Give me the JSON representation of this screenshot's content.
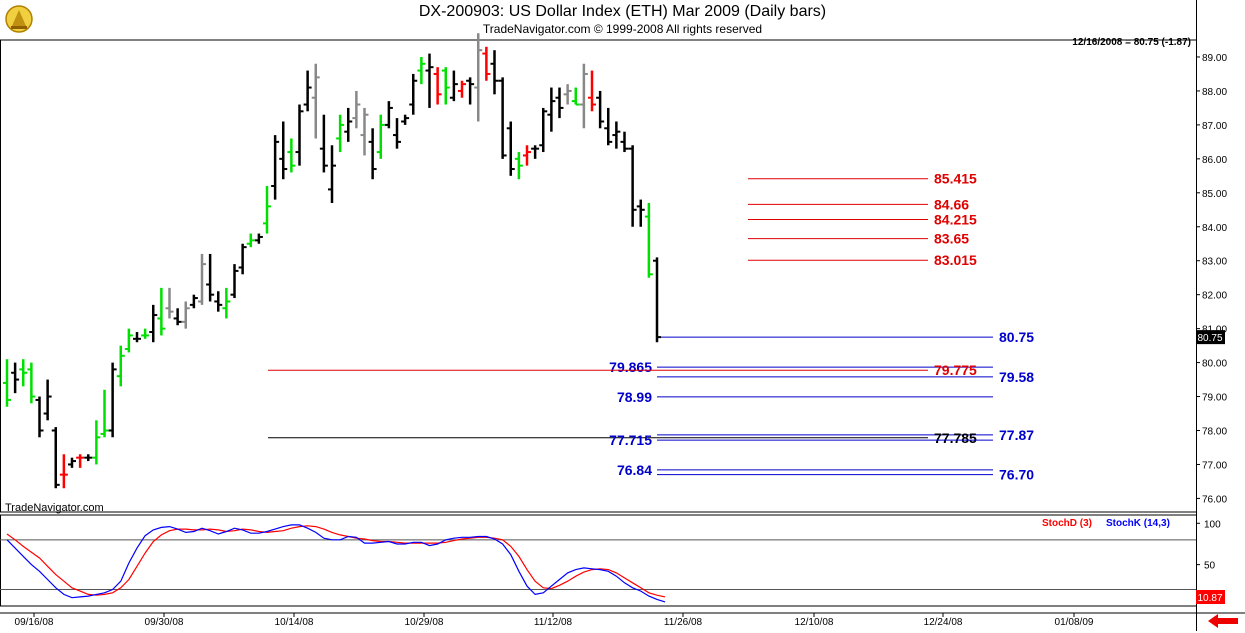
{
  "header": {
    "title": "DX-200903:  US Dollar Index (ETH) Mar 2009  (Daily bars)",
    "copyright": "TradeNavigator.com © 1999-2008 All rights reserved",
    "quote": "12/16/2008 = 80.75 (-1.87)",
    "watermark": "TradeNavigator.com"
  },
  "colors": {
    "up_bar": "#00e000",
    "down_bar": "#ff0000",
    "neutral_bar": "#888888",
    "level_red": "#e00000",
    "level_blue": "#0000cc",
    "stoch_d": "#ff0000",
    "stoch_k": "#0000ff",
    "price_tag": "#000000",
    "stoch_tag": "#ff0000"
  },
  "chart_data": [
    {
      "type": "ohlc",
      "title": "DX-200903:  US Dollar Index (ETH) Mar 2009  (Daily bars)",
      "ylim": [
        75.6,
        89.5
      ],
      "y_ticks": [
        "76.00",
        "77.00",
        "78.00",
        "79.00",
        "80.00",
        "81.00",
        "82.00",
        "83.00",
        "84.00",
        "85.00",
        "86.00",
        "87.00",
        "88.00",
        "89.00"
      ],
      "x_tick_labels": [
        "09/16/08",
        "09/30/08",
        "10/14/08",
        "10/29/08",
        "11/12/08",
        "11/26/08",
        "12/10/08",
        "12/24/08",
        "01/08/09"
      ],
      "last_price_tag": "80.75",
      "bars": [
        {
          "h": 80.1,
          "l": 78.7,
          "o": 79.4,
          "c": 78.9,
          "col": "g"
        },
        {
          "h": 80.0,
          "l": 79.1,
          "o": 79.7,
          "c": 79.5,
          "col": "k"
        },
        {
          "h": 80.1,
          "l": 79.3,
          "o": 79.8,
          "c": 79.7,
          "col": "g"
        },
        {
          "h": 80.0,
          "l": 78.8,
          "o": 79.8,
          "c": 79.0,
          "col": "g"
        },
        {
          "h": 79.0,
          "l": 77.8,
          "o": 78.9,
          "c": 78.0,
          "col": "k"
        },
        {
          "h": 79.5,
          "l": 78.3,
          "o": 78.5,
          "c": 79.0,
          "col": "k"
        },
        {
          "h": 78.1,
          "l": 76.3,
          "o": 78.0,
          "c": 76.4,
          "col": "k"
        },
        {
          "h": 77.3,
          "l": 76.3,
          "o": 76.7,
          "c": 76.7,
          "col": "r"
        },
        {
          "h": 77.2,
          "l": 76.9,
          "o": 77.0,
          "c": 77.1,
          "col": "k"
        },
        {
          "h": 77.3,
          "l": 76.9,
          "o": 77.2,
          "c": 77.2,
          "col": "r"
        },
        {
          "h": 77.3,
          "l": 77.1,
          "o": 77.2,
          "c": 77.2,
          "col": "k"
        },
        {
          "h": 78.3,
          "l": 77.0,
          "o": 77.2,
          "c": 77.8,
          "col": "g"
        },
        {
          "h": 79.2,
          "l": 77.8,
          "o": 77.9,
          "c": 78.0,
          "col": "g"
        },
        {
          "h": 80.0,
          "l": 77.8,
          "o": 78.0,
          "c": 79.8,
          "col": "k"
        },
        {
          "h": 80.5,
          "l": 79.3,
          "o": 79.6,
          "c": 80.2,
          "col": "g"
        },
        {
          "h": 81.0,
          "l": 80.3,
          "o": 80.4,
          "c": 80.8,
          "col": "g"
        },
        {
          "h": 80.9,
          "l": 80.6,
          "o": 80.7,
          "c": 80.7,
          "col": "k"
        },
        {
          "h": 81.0,
          "l": 80.7,
          "o": 80.8,
          "c": 80.8,
          "col": "g"
        },
        {
          "h": 81.7,
          "l": 80.6,
          "o": 80.9,
          "c": 81.4,
          "col": "k"
        },
        {
          "h": 82.2,
          "l": 80.8,
          "o": 81.3,
          "c": 81.0,
          "col": "g"
        },
        {
          "h": 82.2,
          "l": 81.3,
          "o": 81.6,
          "c": 81.5,
          "col": "n"
        },
        {
          "h": 81.6,
          "l": 81.1,
          "o": 81.3,
          "c": 81.2,
          "col": "k"
        },
        {
          "h": 81.8,
          "l": 81.0,
          "o": 81.2,
          "c": 81.6,
          "col": "n"
        },
        {
          "h": 82.0,
          "l": 81.6,
          "o": 81.7,
          "c": 81.9,
          "col": "k"
        },
        {
          "h": 83.2,
          "l": 81.7,
          "o": 81.8,
          "c": 82.9,
          "col": "n"
        },
        {
          "h": 83.2,
          "l": 81.8,
          "o": 82.3,
          "c": 82.0,
          "col": "k"
        },
        {
          "h": 82.1,
          "l": 81.5,
          "o": 81.8,
          "c": 81.7,
          "col": "k"
        },
        {
          "h": 82.2,
          "l": 81.3,
          "o": 81.6,
          "c": 81.8,
          "col": "g"
        },
        {
          "h": 82.9,
          "l": 81.9,
          "o": 82.0,
          "c": 82.7,
          "col": "k"
        },
        {
          "h": 83.5,
          "l": 82.6,
          "o": 82.8,
          "c": 83.4,
          "col": "k"
        },
        {
          "h": 83.8,
          "l": 83.4,
          "o": 83.5,
          "c": 83.6,
          "col": "g"
        },
        {
          "h": 83.8,
          "l": 83.5,
          "o": 83.6,
          "c": 83.7,
          "col": "k"
        },
        {
          "h": 85.2,
          "l": 83.8,
          "o": 84.1,
          "c": 84.6,
          "col": "g"
        },
        {
          "h": 86.7,
          "l": 84.8,
          "o": 85.2,
          "c": 86.5,
          "col": "k"
        },
        {
          "h": 87.1,
          "l": 85.4,
          "o": 86.0,
          "c": 85.7,
          "col": "k"
        },
        {
          "h": 86.6,
          "l": 85.6,
          "o": 86.2,
          "c": 85.8,
          "col": "g"
        },
        {
          "h": 87.6,
          "l": 85.8,
          "o": 86.2,
          "c": 87.4,
          "col": "k"
        },
        {
          "h": 88.6,
          "l": 87.4,
          "o": 87.6,
          "c": 88.1,
          "col": "k"
        },
        {
          "h": 88.8,
          "l": 86.6,
          "o": 87.8,
          "c": 88.4,
          "col": "n"
        },
        {
          "h": 87.3,
          "l": 85.6,
          "o": 86.3,
          "c": 85.8,
          "col": "k"
        },
        {
          "h": 86.4,
          "l": 84.7,
          "o": 85.1,
          "c": 85.8,
          "col": "k"
        },
        {
          "h": 87.3,
          "l": 86.2,
          "o": 86.6,
          "c": 87.0,
          "col": "g"
        },
        {
          "h": 87.5,
          "l": 86.5,
          "o": 86.8,
          "c": 87.1,
          "col": "k"
        },
        {
          "h": 88.0,
          "l": 86.9,
          "o": 87.2,
          "c": 87.6,
          "col": "n"
        },
        {
          "h": 87.5,
          "l": 86.1,
          "o": 86.7,
          "c": 87.3,
          "col": "n"
        },
        {
          "h": 86.9,
          "l": 85.4,
          "o": 86.5,
          "c": 85.7,
          "col": "k"
        },
        {
          "h": 87.3,
          "l": 86.0,
          "o": 86.2,
          "c": 87.0,
          "col": "g"
        },
        {
          "h": 87.7,
          "l": 86.9,
          "o": 87.0,
          "c": 87.5,
          "col": "k"
        },
        {
          "h": 87.2,
          "l": 86.3,
          "o": 86.7,
          "c": 86.5,
          "col": "k"
        },
        {
          "h": 87.3,
          "l": 87.0,
          "o": 87.1,
          "c": 87.2,
          "col": "k"
        },
        {
          "h": 88.5,
          "l": 87.3,
          "o": 87.6,
          "c": 88.3,
          "col": "k"
        },
        {
          "h": 89.0,
          "l": 88.2,
          "o": 88.6,
          "c": 88.8,
          "col": "g"
        },
        {
          "h": 89.1,
          "l": 87.5,
          "o": 88.6,
          "c": 88.7,
          "col": "k"
        },
        {
          "h": 88.7,
          "l": 87.6,
          "o": 88.5,
          "c": 87.9,
          "col": "r"
        },
        {
          "h": 88.7,
          "l": 87.6,
          "o": 88.6,
          "c": 88.1,
          "col": "g"
        },
        {
          "h": 88.6,
          "l": 87.7,
          "o": 87.8,
          "c": 88.2,
          "col": "k"
        },
        {
          "h": 88.3,
          "l": 87.8,
          "o": 88.0,
          "c": 88.2,
          "col": "r"
        },
        {
          "h": 88.4,
          "l": 87.6,
          "o": 88.3,
          "c": 88.2,
          "col": "k"
        },
        {
          "h": 89.7,
          "l": 87.1,
          "o": 88.1,
          "c": 89.2,
          "col": "n"
        },
        {
          "h": 89.3,
          "l": 88.3,
          "o": 89.1,
          "c": 88.5,
          "col": "r"
        },
        {
          "h": 89.2,
          "l": 87.9,
          "o": 88.8,
          "c": 88.3,
          "col": "k"
        },
        {
          "h": 88.4,
          "l": 86.0,
          "o": 88.3,
          "c": 86.1,
          "col": "k"
        },
        {
          "h": 87.1,
          "l": 85.5,
          "o": 86.9,
          "c": 85.7,
          "col": "k"
        },
        {
          "h": 86.2,
          "l": 85.4,
          "o": 86.0,
          "c": 85.8,
          "col": "g"
        },
        {
          "h": 86.4,
          "l": 85.8,
          "o": 86.1,
          "c": 86.2,
          "col": "r"
        },
        {
          "h": 86.4,
          "l": 86.0,
          "o": 86.3,
          "c": 86.3,
          "col": "k"
        },
        {
          "h": 87.5,
          "l": 86.2,
          "o": 86.4,
          "c": 87.4,
          "col": "k"
        },
        {
          "h": 88.1,
          "l": 86.8,
          "o": 87.3,
          "c": 87.7,
          "col": "k"
        },
        {
          "h": 88.1,
          "l": 87.2,
          "o": 87.8,
          "c": 87.5,
          "col": "k"
        },
        {
          "h": 88.2,
          "l": 87.6,
          "o": 87.9,
          "c": 88.0,
          "col": "n"
        },
        {
          "h": 88.1,
          "l": 87.6,
          "o": 87.7,
          "c": 87.6,
          "col": "g"
        },
        {
          "h": 88.8,
          "l": 86.9,
          "o": 87.6,
          "c": 88.5,
          "col": "n"
        },
        {
          "h": 88.6,
          "l": 87.4,
          "o": 87.8,
          "c": 87.6,
          "col": "r"
        },
        {
          "h": 88.0,
          "l": 86.9,
          "o": 87.8,
          "c": 87.1,
          "col": "k"
        },
        {
          "h": 87.5,
          "l": 86.4,
          "o": 86.9,
          "c": 86.5,
          "col": "k"
        },
        {
          "h": 87.1,
          "l": 86.3,
          "o": 86.7,
          "c": 86.8,
          "col": "k"
        },
        {
          "h": 86.8,
          "l": 86.2,
          "o": 86.5,
          "c": 86.3,
          "col": "k"
        },
        {
          "h": 86.4,
          "l": 84.0,
          "o": 86.3,
          "c": 84.5,
          "col": "k"
        },
        {
          "h": 84.8,
          "l": 84.0,
          "o": 84.6,
          "c": 84.5,
          "col": "k"
        },
        {
          "h": 84.7,
          "l": 82.5,
          "o": 84.3,
          "c": 82.6,
          "col": "g"
        },
        {
          "h": 83.1,
          "l": 80.6,
          "o": 83.0,
          "c": 80.75,
          "col": "k"
        }
      ]
    },
    {
      "type": "line",
      "title": "Stochastic",
      "ylim": [
        0,
        110
      ],
      "y_ticks": [
        "100",
        "50"
      ],
      "last_value_tag": "10.87",
      "series": [
        {
          "name": "StochD (3)",
          "color": "#ff0000",
          "values": [
            87,
            80,
            72,
            65,
            58,
            48,
            38,
            30,
            22,
            18,
            14,
            13,
            14,
            16,
            22,
            32,
            48,
            64,
            78,
            86,
            91,
            93,
            93,
            92,
            92,
            93,
            92,
            90,
            91,
            93,
            92,
            90,
            89,
            90,
            91,
            94,
            96,
            97,
            96,
            93,
            89,
            86,
            84,
            82,
            81,
            79,
            78,
            78,
            77,
            76,
            76,
            76,
            76,
            76,
            77,
            79,
            81,
            82,
            83,
            83,
            82,
            80,
            72,
            60,
            44,
            30,
            22,
            21,
            25,
            30,
            36,
            41,
            44,
            45,
            44,
            40,
            34,
            28,
            22,
            16,
            13,
            11
          ]
        },
        {
          "name": "StochK (14,3)",
          "color": "#0000ff",
          "values": [
            80,
            70,
            60,
            50,
            42,
            32,
            22,
            14,
            10,
            11,
            12,
            14,
            16,
            20,
            30,
            52,
            70,
            85,
            92,
            95,
            96,
            93,
            89,
            90,
            94,
            91,
            87,
            90,
            94,
            92,
            88,
            88,
            90,
            93,
            96,
            98,
            98,
            94,
            89,
            82,
            80,
            80,
            84,
            83,
            76,
            76,
            77,
            78,
            75,
            75,
            77,
            77,
            73,
            75,
            80,
            82,
            83,
            83,
            84,
            84,
            81,
            75,
            62,
            42,
            24,
            14,
            16,
            24,
            32,
            40,
            44,
            46,
            45,
            44,
            42,
            36,
            28,
            22,
            18,
            12,
            8,
            5
          ]
        }
      ]
    }
  ],
  "levels": [
    {
      "value": 85.415,
      "label": "85.415",
      "color": "red",
      "x1": 748,
      "x2": 928,
      "label_side": "right"
    },
    {
      "value": 84.66,
      "label": "84.66",
      "color": "red",
      "x1": 748,
      "x2": 928,
      "label_side": "right"
    },
    {
      "value": 84.215,
      "label": "84.215",
      "color": "red",
      "x1": 748,
      "x2": 928,
      "label_side": "right"
    },
    {
      "value": 83.65,
      "label": "83.65",
      "color": "red",
      "x1": 748,
      "x2": 928,
      "label_side": "right"
    },
    {
      "value": 83.015,
      "label": "83.015",
      "color": "red",
      "x1": 748,
      "x2": 928,
      "label_side": "right"
    },
    {
      "value": 80.75,
      "label": "80.75",
      "color": "blue",
      "x1": 657,
      "x2": 993,
      "label_side": "right"
    },
    {
      "value": 79.865,
      "label": "79.865",
      "color": "blue",
      "x1": 657,
      "x2": 993,
      "label_side": "left"
    },
    {
      "value": 79.775,
      "label": "79.775",
      "color": "red",
      "x1": 268,
      "x2": 928,
      "label_side": "right"
    },
    {
      "value": 79.58,
      "label": "79.58",
      "color": "blue",
      "x1": 657,
      "x2": 993,
      "label_side": "right"
    },
    {
      "value": 78.99,
      "label": "78.99",
      "color": "blue",
      "x1": 657,
      "x2": 993,
      "label_side": "left"
    },
    {
      "value": 77.87,
      "label": "77.87",
      "color": "blue",
      "x1": 657,
      "x2": 993,
      "label_side": "right"
    },
    {
      "value": 77.785,
      "label": "77.785",
      "color": "black",
      "x1": 268,
      "x2": 928,
      "label_side": "right"
    },
    {
      "value": 77.715,
      "label": "77.715",
      "color": "blue",
      "x1": 657,
      "x2": 993,
      "label_side": "left"
    },
    {
      "value": 76.84,
      "label": "76.84",
      "color": "blue",
      "x1": 657,
      "x2": 993,
      "label_side": "left"
    },
    {
      "value": 76.7,
      "label": "76.70",
      "color": "blue",
      "x1": 657,
      "x2": 993,
      "label_side": "right"
    }
  ]
}
